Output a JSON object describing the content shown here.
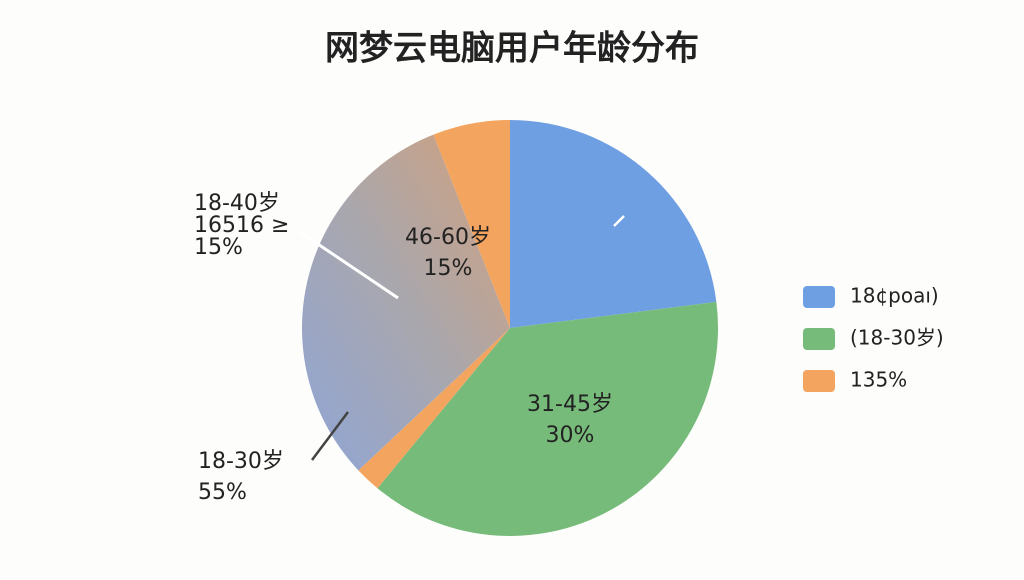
{
  "chart_data": {
    "type": "pie",
    "title": "网梦云电脑用户年龄分布",
    "values": [
      23,
      38,
      2,
      31,
      6
    ],
    "colors": [
      "#6f9fe3",
      "#77bb7b",
      "#f3a45f",
      "#a9a7ad",
      "#f3a45f"
    ],
    "annotations": [
      {
        "lines": [
          "18-40岁",
          "16516 ≥",
          "15%"
        ]
      },
      {
        "lines": [
          "46-60岁",
          "15%"
        ]
      },
      {
        "lines": [
          "31-45岁",
          "30%"
        ]
      },
      {
        "lines": [
          "18-30岁",
          "55%"
        ]
      }
    ],
    "legend": [
      {
        "label": "18¢poaı)",
        "color": "#6f9fe3"
      },
      {
        "label": "(18-30岁)",
        "color": "#77bb7b"
      },
      {
        "label": "135%",
        "color": "#f3a45f"
      }
    ]
  }
}
